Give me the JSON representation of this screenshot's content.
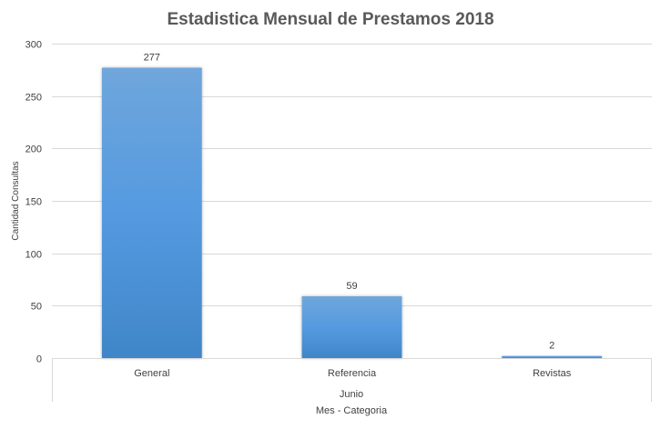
{
  "chart_data": {
    "type": "bar",
    "title": "Estadistica Mensual de Prestamos 2018",
    "categories": [
      "General",
      "Referencia",
      "Revistas"
    ],
    "group_label": "Junio",
    "values": [
      277,
      59,
      2
    ],
    "xlabel": "Mes - Categoria",
    "ylabel": "Cantidad Consultas",
    "ylim": [
      0,
      300
    ],
    "yticks": [
      0,
      50,
      100,
      150,
      200,
      250,
      300
    ],
    "grid": true,
    "bar_color": "#4a90d4"
  }
}
